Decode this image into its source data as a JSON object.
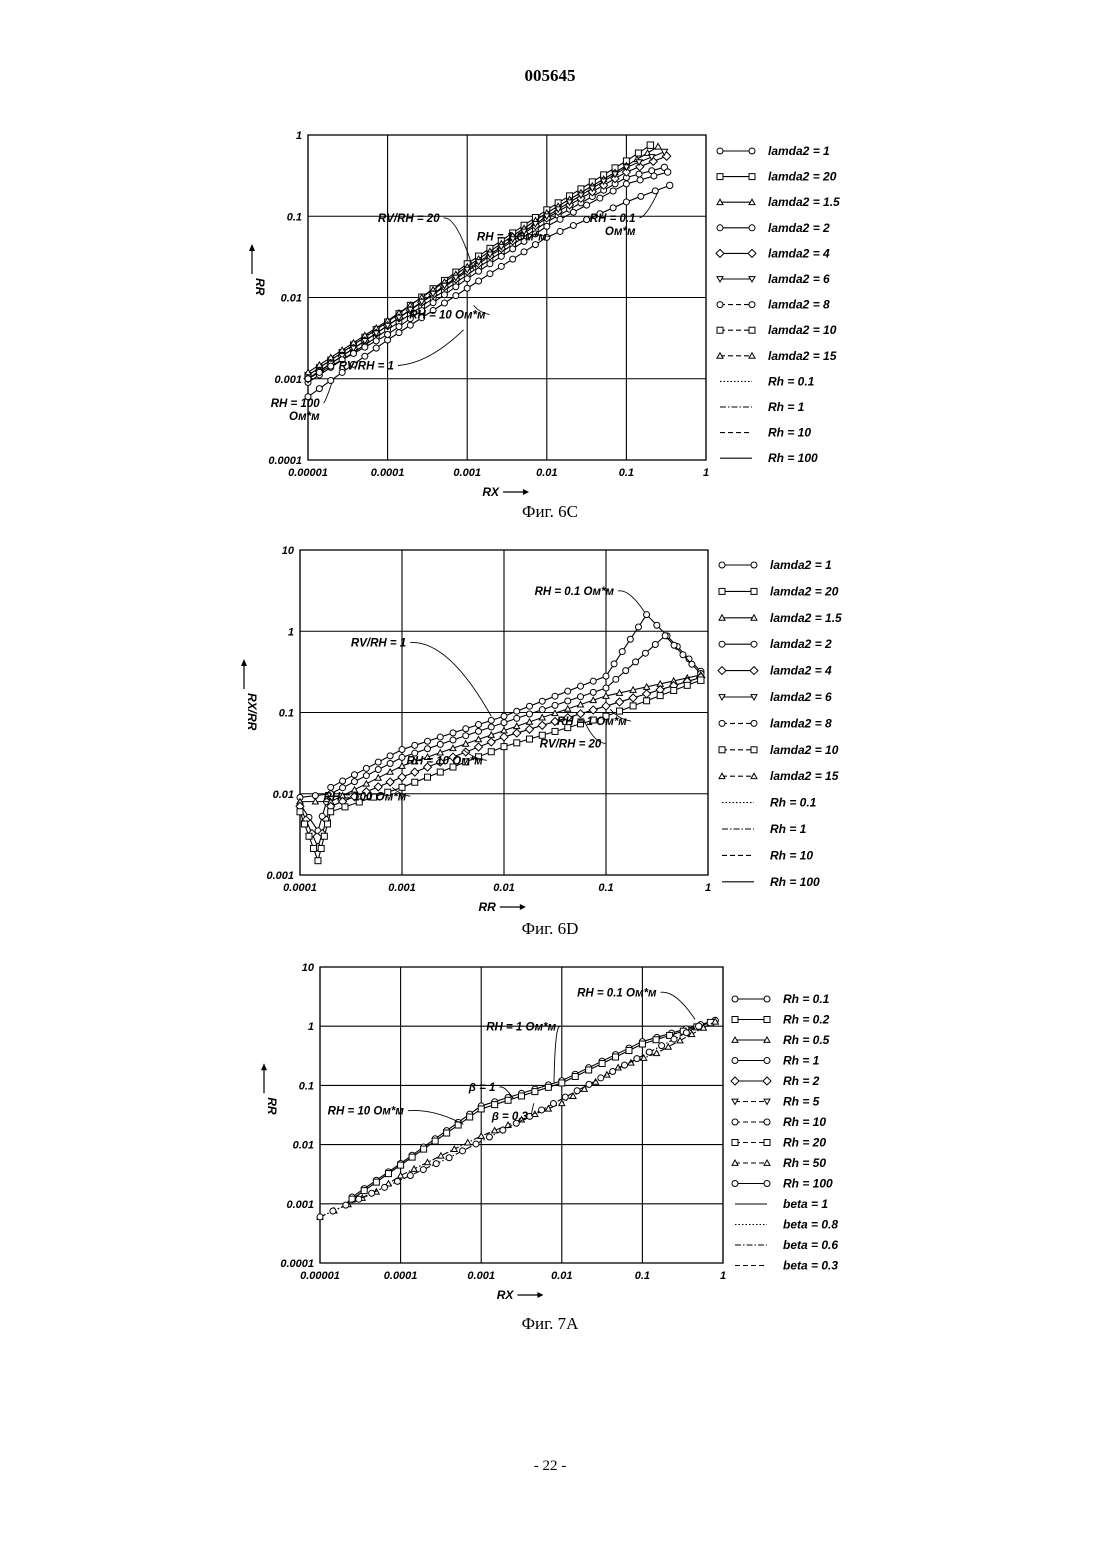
{
  "document": {
    "number": "005645",
    "page": "- 22 -"
  },
  "chart_data": [
    {
      "type": "line",
      "caption": "Фиг. 6С",
      "xlabel": "RX",
      "ylabel": "RR",
      "xscale": "log",
      "yscale": "log",
      "xlim": [
        1e-05,
        1
      ],
      "ylim": [
        0.0001,
        1
      ],
      "xticks": [
        {
          "v": 1e-05,
          "label": "0.00001"
        },
        {
          "v": 0.0001,
          "label": "0.0001"
        },
        {
          "v": 0.001,
          "label": "0.001"
        },
        {
          "v": 0.01,
          "label": "0.01"
        },
        {
          "v": 0.1,
          "label": "0.1"
        },
        {
          "v": 1,
          "label": "1"
        }
      ],
      "yticks": [
        {
          "v": 0.0001,
          "label": "0.0001"
        },
        {
          "v": 0.001,
          "label": "0.001"
        },
        {
          "v": 0.01,
          "label": "0.01"
        },
        {
          "v": 0.1,
          "label": "0.1"
        },
        {
          "v": 1,
          "label": "1"
        }
      ],
      "grid": true,
      "legend_position": "right",
      "legend": [
        {
          "label": "lamda2 = 1",
          "marker": "circle",
          "line": "solid"
        },
        {
          "label": "lamda2 = 20",
          "marker": "square",
          "line": "solid"
        },
        {
          "label": "lamda2 = 1.5",
          "marker": "triangle",
          "line": "solid"
        },
        {
          "label": "lamda2 = 2",
          "marker": "circle",
          "line": "solid"
        },
        {
          "label": "lamda2 = 4",
          "marker": "diamond",
          "line": "solid"
        },
        {
          "label": "lamda2 = 6",
          "marker": "triangle-down",
          "line": "solid"
        },
        {
          "label": "lamda2 = 8",
          "marker": "circle",
          "line": "dashed"
        },
        {
          "label": "lamda2 = 10",
          "marker": "square",
          "line": "dashed"
        },
        {
          "label": "lamda2 = 15",
          "marker": "triangle",
          "line": "dashed"
        },
        {
          "label": "Rh = 0.1",
          "marker": "none",
          "line": "dotted"
        },
        {
          "label": "Rh = 1",
          "marker": "none",
          "line": "dashdot"
        },
        {
          "label": "Rh = 10",
          "marker": "none",
          "line": "dashed"
        },
        {
          "label": "Rh = 100",
          "marker": "none",
          "line": "solid"
        }
      ],
      "series": [
        {
          "marker": "circle",
          "points": [
            [
              1e-05,
              0.0006
            ],
            [
              0.0001,
              0.003
            ],
            [
              0.001,
              0.013
            ],
            [
              0.01,
              0.055
            ],
            [
              0.1,
              0.15
            ],
            [
              0.35,
              0.24
            ]
          ]
        },
        {
          "marker": "square",
          "points": [
            [
              1e-05,
              0.0011
            ],
            [
              0.0001,
              0.005
            ],
            [
              0.001,
              0.026
            ],
            [
              0.01,
              0.12
            ],
            [
              0.1,
              0.48
            ],
            [
              0.2,
              0.75
            ]
          ]
        },
        {
          "marker": "triangle",
          "points": [
            [
              1e-05,
              0.0012
            ],
            [
              0.0001,
              0.0052
            ],
            [
              0.001,
              0.024
            ],
            [
              0.01,
              0.11
            ],
            [
              0.1,
              0.42
            ],
            [
              0.25,
              0.72
            ]
          ]
        },
        {
          "marker": "circle",
          "points": [
            [
              1e-05,
              0.0009
            ],
            [
              0.0001,
              0.004
            ],
            [
              0.001,
              0.019
            ],
            [
              0.01,
              0.085
            ],
            [
              0.1,
              0.3
            ],
            [
              0.3,
              0.4
            ]
          ]
        },
        {
          "marker": "diamond",
          "points": [
            [
              1e-05,
              0.001
            ],
            [
              0.0001,
              0.0045
            ],
            [
              0.001,
              0.021
            ],
            [
              0.01,
              0.095
            ],
            [
              0.1,
              0.35
            ],
            [
              0.32,
              0.55
            ]
          ]
        },
        {
          "marker": "triangle-down",
          "points": [
            [
              1e-05,
              0.001
            ],
            [
              0.0001,
              0.0045
            ],
            [
              0.001,
              0.022
            ],
            [
              0.01,
              0.1
            ],
            [
              0.1,
              0.4
            ],
            [
              0.3,
              0.62
            ]
          ]
        },
        {
          "marker": "circle",
          "points": [
            [
              1e-05,
              0.001
            ],
            [
              0.0001,
              0.0035
            ],
            [
              0.001,
              0.017
            ],
            [
              0.01,
              0.075
            ],
            [
              0.1,
              0.25
            ],
            [
              0.33,
              0.35
            ]
          ]
        }
      ],
      "annotations": [
        {
          "text": "RV/RH = 20",
          "at": [
            0.00045,
            0.085
          ],
          "to": [
            0.0012,
            0.022
          ]
        },
        {
          "text": "RH = 0.1",
          "sub": "Ом*м",
          "at": [
            0.13,
            0.085
          ],
          "to": [
            0.25,
            0.2
          ]
        },
        {
          "text": "RH = 1 Ом*м",
          "at": [
            0.01,
            0.05
          ],
          "to": [
            0.006,
            0.06
          ]
        },
        {
          "text": "RH = 10 Ом*м",
          "at": [
            0.0017,
            0.0055
          ],
          "to": [
            0.0012,
            0.008
          ]
        },
        {
          "text": "RV/RH = 1",
          "at": [
            0.00012,
            0.0013
          ],
          "to": [
            0.0009,
            0.004
          ]
        },
        {
          "text": "RH = 100",
          "sub": "Ом*м",
          "at": [
            1.4e-05,
            0.00045
          ],
          "to": [
            2e-05,
            0.0009
          ]
        }
      ]
    },
    {
      "type": "line",
      "caption": "Фиг. 6D",
      "xlabel": "RR",
      "ylabel": "RX/RR",
      "xscale": "log",
      "yscale": "log",
      "xlim": [
        0.0001,
        1
      ],
      "ylim": [
        0.001,
        10
      ],
      "xticks": [
        {
          "v": 0.0001,
          "label": "0.0001"
        },
        {
          "v": 0.001,
          "label": "0.001"
        },
        {
          "v": 0.01,
          "label": "0.01"
        },
        {
          "v": 0.1,
          "label": "0.1"
        },
        {
          "v": 1,
          "label": "1"
        }
      ],
      "yticks": [
        {
          "v": 0.001,
          "label": "0.001"
        },
        {
          "v": 0.01,
          "label": "0.01"
        },
        {
          "v": 0.1,
          "label": "0.1"
        },
        {
          "v": 1,
          "label": "1"
        },
        {
          "v": 10,
          "label": "10"
        }
      ],
      "grid": true,
      "legend_position": "right",
      "legend": [
        {
          "label": "lamda2 = 1",
          "marker": "circle",
          "line": "solid"
        },
        {
          "label": "lamda2 = 20",
          "marker": "square",
          "line": "solid"
        },
        {
          "label": "lamda2 = 1.5",
          "marker": "triangle",
          "line": "solid"
        },
        {
          "label": "lamda2 = 2",
          "marker": "circle",
          "line": "solid"
        },
        {
          "label": "lamda2 = 4",
          "marker": "diamond",
          "line": "solid"
        },
        {
          "label": "lamda2 = 6",
          "marker": "triangle-down",
          "line": "solid"
        },
        {
          "label": "lamda2 = 8",
          "marker": "circle",
          "line": "dashed"
        },
        {
          "label": "lamda2 = 10",
          "marker": "square",
          "line": "dashed"
        },
        {
          "label": "lamda2 = 15",
          "marker": "triangle",
          "line": "dashed"
        },
        {
          "label": "Rh = 0.1",
          "marker": "none",
          "line": "dotted"
        },
        {
          "label": "Rh = 1",
          "marker": "none",
          "line": "dashdot"
        },
        {
          "label": "Rh = 10",
          "marker": "none",
          "line": "dashed"
        },
        {
          "label": "Rh = 100",
          "marker": "none",
          "line": "solid"
        }
      ],
      "series": [
        {
          "marker": "circle",
          "points": [
            [
              0.0001,
              0.0075
            ],
            [
              0.00015,
              0.0035
            ],
            [
              0.0002,
              0.012
            ],
            [
              0.001,
              0.035
            ],
            [
              0.01,
              0.09
            ],
            [
              0.1,
              0.28
            ],
            [
              0.25,
              1.6
            ],
            [
              0.5,
              0.65
            ],
            [
              0.85,
              0.32
            ]
          ]
        },
        {
          "marker": "circle",
          "points": [
            [
              0.0001,
              0.009
            ],
            [
              0.0002,
              0.01
            ],
            [
              0.001,
              0.028
            ],
            [
              0.01,
              0.075
            ],
            [
              0.1,
              0.2
            ],
            [
              0.38,
              0.88
            ],
            [
              0.85,
              0.3
            ]
          ]
        },
        {
          "marker": "triangle",
          "points": [
            [
              0.0001,
              0.008
            ],
            [
              0.0002,
              0.008
            ],
            [
              0.001,
              0.022
            ],
            [
              0.01,
              0.06
            ],
            [
              0.1,
              0.16
            ],
            [
              0.85,
              0.29
            ]
          ]
        },
        {
          "marker": "diamond",
          "points": [
            [
              0.0001,
              0.007
            ],
            [
              0.00015,
              0.0022
            ],
            [
              0.0002,
              0.007
            ],
            [
              0.001,
              0.016
            ],
            [
              0.01,
              0.05
            ],
            [
              0.1,
              0.12
            ],
            [
              0.85,
              0.27
            ]
          ]
        },
        {
          "marker": "square",
          "points": [
            [
              0.0001,
              0.006
            ],
            [
              0.00015,
              0.0015
            ],
            [
              0.0002,
              0.006
            ],
            [
              0.001,
              0.012
            ],
            [
              0.01,
              0.038
            ],
            [
              0.1,
              0.09
            ],
            [
              0.85,
              0.25
            ]
          ]
        }
      ],
      "annotations": [
        {
          "text": "RH = 0.1 Ом*м",
          "at": [
            0.12,
            2.8
          ],
          "to": [
            0.24,
            1.7
          ]
        },
        {
          "text": "RV/RH = 1",
          "at": [
            0.0011,
            0.65
          ],
          "to": [
            0.0075,
            0.09
          ]
        },
        {
          "text": "RH = 1 Ом*м",
          "at": [
            0.16,
            0.07
          ],
          "to": [
            0.11,
            0.11
          ]
        },
        {
          "text": "RV/RH = 20",
          "at": [
            0.09,
            0.037
          ],
          "to": [
            0.06,
            0.085
          ]
        },
        {
          "text": "RH = 10 Ом*м",
          "at": [
            0.0062,
            0.023
          ],
          "to": [
            0.004,
            0.035
          ]
        },
        {
          "text": "RH = 100 Ом*м",
          "at": [
            0.0011,
            0.0083
          ],
          "to": [
            0.0008,
            0.012
          ]
        }
      ]
    },
    {
      "type": "line",
      "caption": "Фиг. 7А",
      "xlabel": "RX",
      "ylabel": "RR",
      "xscale": "log",
      "yscale": "log",
      "xlim": [
        1e-05,
        1
      ],
      "ylim": [
        0.0001,
        10
      ],
      "xticks": [
        {
          "v": 1e-05,
          "label": "0.00001"
        },
        {
          "v": 0.0001,
          "label": "0.0001"
        },
        {
          "v": 0.001,
          "label": "0.001"
        },
        {
          "v": 0.01,
          "label": "0.01"
        },
        {
          "v": 0.1,
          "label": "0.1"
        },
        {
          "v": 1,
          "label": "1"
        }
      ],
      "yticks": [
        {
          "v": 0.0001,
          "label": "0.0001"
        },
        {
          "v": 0.001,
          "label": "0.001"
        },
        {
          "v": 0.01,
          "label": "0.01"
        },
        {
          "v": 0.1,
          "label": "0.1"
        },
        {
          "v": 1,
          "label": "1"
        },
        {
          "v": 10,
          "label": "10"
        }
      ],
      "grid": true,
      "legend_position": "right",
      "legend": [
        {
          "label": "Rh = 0.1",
          "marker": "circle",
          "line": "solid"
        },
        {
          "label": "Rh = 0.2",
          "marker": "square",
          "line": "solid"
        },
        {
          "label": "Rh = 0.5",
          "marker": "triangle",
          "line": "solid"
        },
        {
          "label": "Rh = 1",
          "marker": "circle",
          "line": "solid"
        },
        {
          "label": "Rh = 2",
          "marker": "diamond",
          "line": "solid"
        },
        {
          "label": "Rh = 5",
          "marker": "triangle-down",
          "line": "dashed"
        },
        {
          "label": "Rh = 10",
          "marker": "circle",
          "line": "dashed"
        },
        {
          "label": "Rh = 20",
          "marker": "square",
          "line": "dashed"
        },
        {
          "label": "Rh = 50",
          "marker": "triangle",
          "line": "dashed"
        },
        {
          "label": "Rh = 100",
          "marker": "circle",
          "line": "solid"
        },
        {
          "label": "beta = 1",
          "marker": "none",
          "line": "solid"
        },
        {
          "label": "beta = 0.8",
          "marker": "none",
          "line": "dotted"
        },
        {
          "label": "beta = 0.6",
          "marker": "none",
          "line": "dashdot"
        },
        {
          "label": "beta = 0.3",
          "marker": "none",
          "line": "dashed"
        }
      ],
      "series": [
        {
          "marker": "circle",
          "line": "solid",
          "points": [
            [
              2.5e-05,
              0.0013
            ],
            [
              0.0001,
              0.0048
            ],
            [
              0.001,
              0.045
            ],
            [
              0.01,
              0.12
            ],
            [
              0.1,
              0.55
            ],
            [
              0.8,
              1.25
            ]
          ]
        },
        {
          "marker": "square",
          "line": "solid",
          "points": [
            [
              2.5e-05,
              0.0012
            ],
            [
              0.0001,
              0.0045
            ],
            [
              0.001,
              0.04
            ],
            [
              0.01,
              0.11
            ],
            [
              0.1,
              0.5
            ],
            [
              0.7,
              1.15
            ]
          ]
        },
        {
          "marker": "triangle",
          "line": "dashdot",
          "points": [
            [
              1e-05,
              0.0006
            ],
            [
              5e-05,
              0.0016
            ],
            [
              0.0001,
              0.003
            ],
            [
              0.001,
              0.014
            ],
            [
              0.01,
              0.05
            ],
            [
              0.05,
              0.2
            ],
            [
              0.15,
              0.35
            ],
            [
              0.8,
              1.2
            ]
          ]
        },
        {
          "marker": "circle",
          "line": "dashdot",
          "points": [
            [
              1e-05,
              0.0006
            ],
            [
              0.0004,
              0.006
            ],
            [
              0.004,
              0.03
            ],
            [
              0.06,
              0.22
            ],
            [
              0.5,
              1.0
            ]
          ]
        }
      ],
      "annotations": [
        {
          "text": "RH = 0.1 Ом*м",
          "at": [
            0.15,
            3.2
          ],
          "to": [
            0.45,
            1.3
          ]
        },
        {
          "text": "RH = 1 Ом*м",
          "at": [
            0.0085,
            0.85
          ],
          "to": [
            0.008,
            0.11
          ]
        },
        {
          "text": "β = 1",
          "at": [
            0.0015,
            0.08
          ],
          "to": [
            0.0025,
            0.06
          ]
        },
        {
          "text": "β = 0.3",
          "at": [
            0.0038,
            0.026
          ],
          "to": [
            0.0045,
            0.05
          ]
        },
        {
          "text": "RH = 10 Ом*м",
          "at": [
            0.00011,
            0.032
          ],
          "to": [
            0.0006,
            0.022
          ]
        }
      ]
    }
  ]
}
